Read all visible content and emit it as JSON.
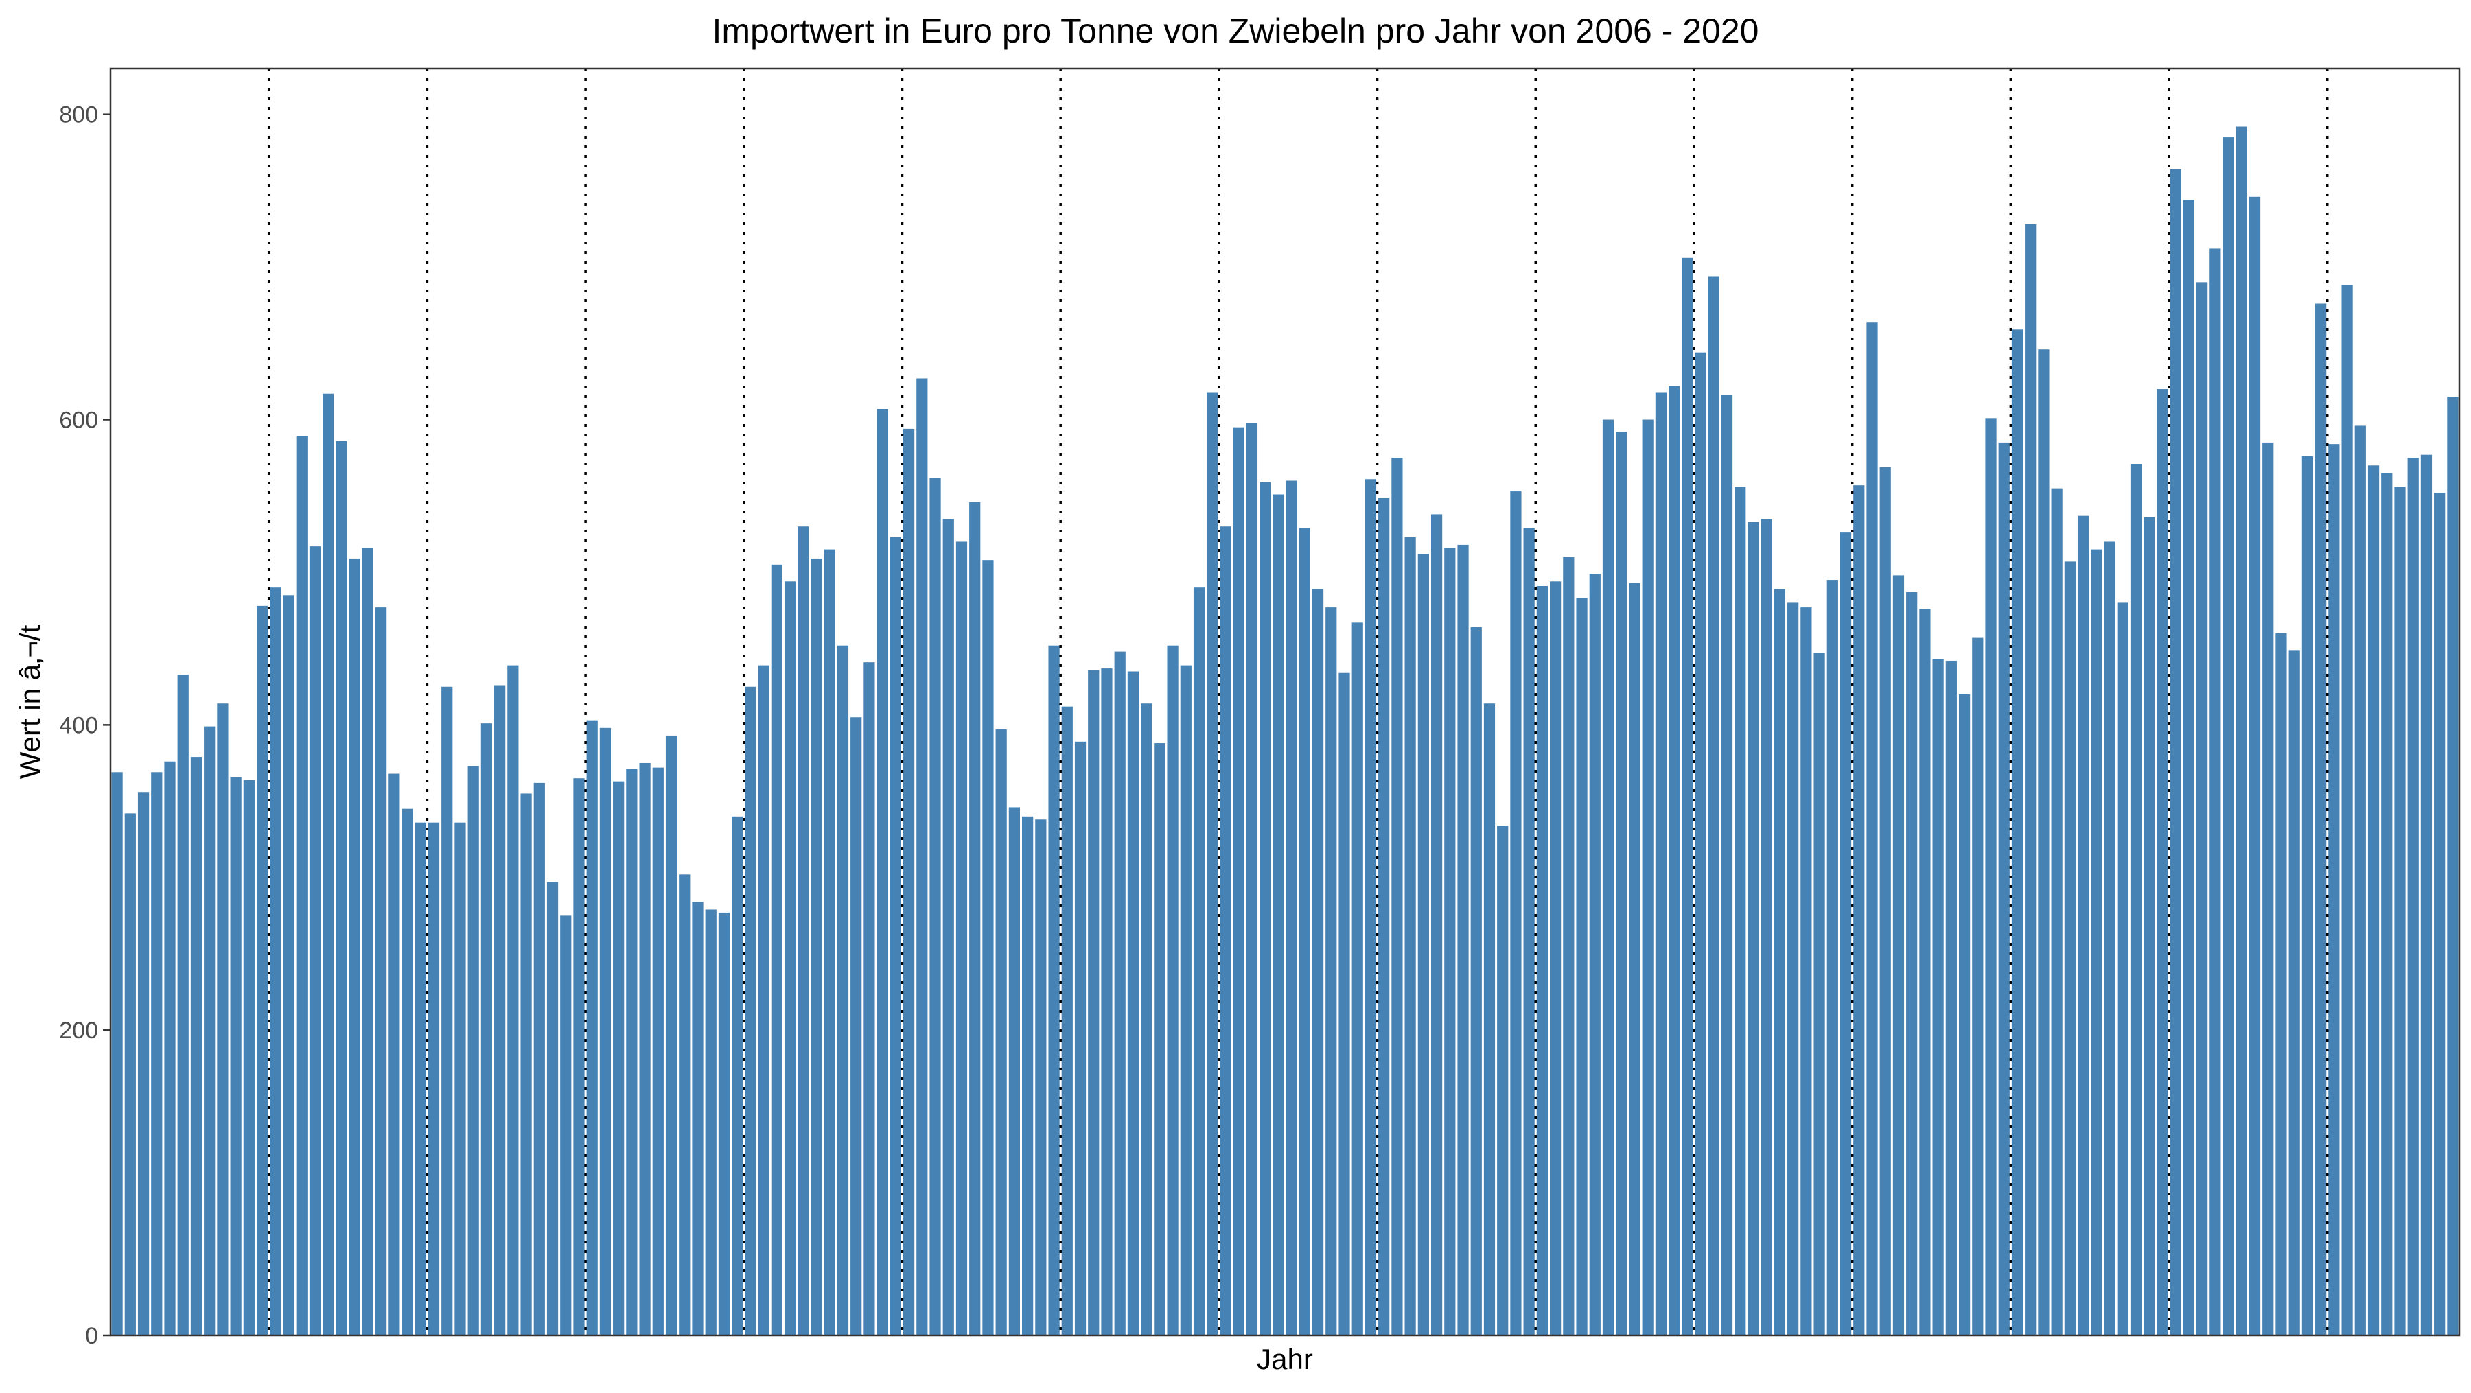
{
  "chart_data": {
    "type": "bar",
    "title": "Importwert in Euro pro Tonne von Zwiebeln pro Jahr von 2006 - 2020",
    "xlabel": "Jahr",
    "ylabel": "Wert in â‚¬/t",
    "ylim": [
      0,
      830
    ],
    "yticks": [
      0,
      200,
      400,
      600,
      800
    ],
    "grid": false,
    "year_separators": "dotted vertical lines between years",
    "bar_color": "#4682B4",
    "values": [
      369,
      342,
      356,
      369,
      376,
      433,
      379,
      399,
      414,
      366,
      364,
      478,
      490,
      485,
      589,
      517,
      617,
      586,
      509,
      516,
      477,
      368,
      345,
      336,
      336,
      425,
      336,
      373,
      401,
      426,
      439,
      355,
      362,
      297,
      275,
      365,
      403,
      398,
      363,
      371,
      375,
      372,
      393,
      302,
      284,
      279,
      277,
      340,
      425,
      439,
      505,
      494,
      530,
      509,
      515,
      452,
      405,
      441,
      607,
      523,
      594,
      627,
      562,
      535,
      520,
      546,
      508,
      397,
      346,
      340,
      338,
      452,
      412,
      389,
      436,
      437,
      448,
      435,
      414,
      388,
      452,
      439,
      490,
      618,
      530,
      595,
      598,
      559,
      551,
      560,
      529,
      489,
      477,
      434,
      467,
      561,
      549,
      575,
      523,
      512,
      538,
      516,
      518,
      464,
      414,
      334,
      553,
      529,
      491,
      494,
      510,
      483,
      499,
      600,
      592,
      493,
      600,
      618,
      622,
      706,
      644,
      694,
      616,
      556,
      533,
      535,
      489,
      480,
      477,
      447,
      495,
      526,
      557,
      664,
      569,
      498,
      487,
      476,
      443,
      442,
      420,
      457,
      601,
      585,
      659,
      728,
      646,
      555,
      507,
      537,
      515,
      520,
      480,
      571,
      536,
      620,
      764,
      744,
      690,
      712,
      785,
      792,
      746,
      585,
      460,
      449,
      576,
      676,
      584,
      688,
      596,
      570,
      565,
      556,
      575,
      577,
      552,
      615
    ]
  }
}
